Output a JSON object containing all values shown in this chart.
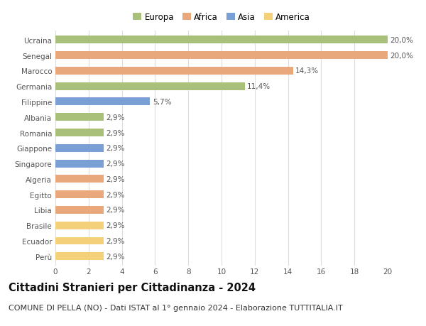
{
  "countries": [
    "Ucraina",
    "Senegal",
    "Marocco",
    "Germania",
    "Filippine",
    "Albania",
    "Romania",
    "Giappone",
    "Singapore",
    "Algeria",
    "Egitto",
    "Libia",
    "Brasile",
    "Ecuador",
    "Perù"
  ],
  "values": [
    20.0,
    20.0,
    14.3,
    11.4,
    5.7,
    2.9,
    2.9,
    2.9,
    2.9,
    2.9,
    2.9,
    2.9,
    2.9,
    2.9,
    2.9
  ],
  "labels": [
    "20,0%",
    "20,0%",
    "14,3%",
    "11,4%",
    "5,7%",
    "2,9%",
    "2,9%",
    "2,9%",
    "2,9%",
    "2,9%",
    "2,9%",
    "2,9%",
    "2,9%",
    "2,9%",
    "2,9%"
  ],
  "continents": [
    "Europa",
    "Africa",
    "Africa",
    "Europa",
    "Asia",
    "Europa",
    "Europa",
    "Asia",
    "Asia",
    "Africa",
    "Africa",
    "Africa",
    "America",
    "America",
    "America"
  ],
  "continent_colors": {
    "Europa": "#a8c07a",
    "Africa": "#e8a87c",
    "Asia": "#7a9fd4",
    "America": "#f5d07a"
  },
  "legend_order": [
    "Europa",
    "Africa",
    "Asia",
    "America"
  ],
  "title": "Cittadini Stranieri per Cittadinanza - 2024",
  "subtitle": "COMUNE DI PELLA (NO) - Dati ISTAT al 1° gennaio 2024 - Elaborazione TUTTITALIA.IT",
  "xlim": [
    0,
    20
  ],
  "xticks": [
    0,
    2,
    4,
    6,
    8,
    10,
    12,
    14,
    16,
    18,
    20
  ],
  "background_color": "#ffffff",
  "grid_color": "#dddddd",
  "bar_height": 0.5,
  "title_fontsize": 10.5,
  "subtitle_fontsize": 8,
  "label_fontsize": 7.5,
  "tick_fontsize": 7.5,
  "legend_fontsize": 8.5
}
